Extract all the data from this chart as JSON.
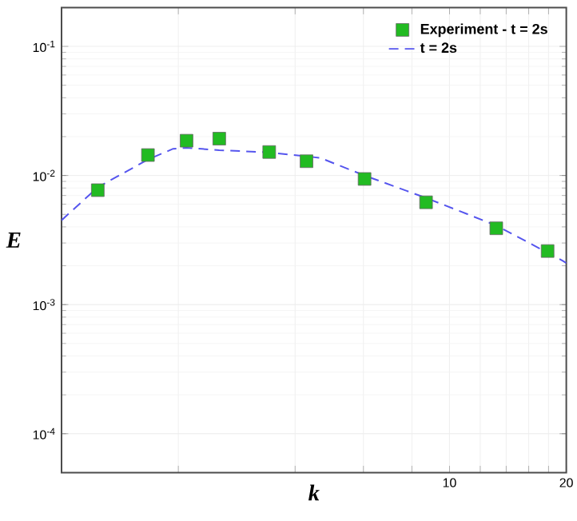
{
  "chart_data": {
    "type": "scatter",
    "xlabel": "k",
    "ylabel": "E",
    "log": "xy",
    "xlim": [
      1,
      20
    ],
    "ylim": [
      5e-05,
      0.2
    ],
    "xticks": [
      {
        "value": 2,
        "label": null
      },
      {
        "value": 4,
        "label": null
      },
      {
        "value": 6,
        "label": null
      },
      {
        "value": 8,
        "label": null
      },
      10,
      {
        "value": 12,
        "label": null
      },
      {
        "value": 14,
        "label": null
      },
      {
        "value": 16,
        "label": null
      },
      {
        "value": 18,
        "label": null
      },
      20
    ],
    "yticks": [
      {
        "value": 0.0001,
        "label": "10$^{-4}$"
      },
      {
        "value": 0.001,
        "label": "10$^{-3}$"
      },
      {
        "value": 0.01,
        "label": "10$^{-2}$"
      },
      {
        "value": 0.1,
        "label": "10$^{-1}$"
      }
    ],
    "grid": true,
    "legend": "top right",
    "series": [
      {
        "name": "Experiment - t = 2s",
        "marker": "square",
        "color": "#22bb22",
        "x": [
          1.24,
          1.67,
          2.1,
          2.55,
          3.43,
          4.28,
          6.04,
          8.7,
          13.2,
          17.9
        ],
        "values": [
          0.0077,
          0.0144,
          0.0186,
          0.0193,
          0.0152,
          0.0129,
          0.0094,
          0.0062,
          0.0039,
          0.0026
        ]
      },
      {
        "name": "t = 2s",
        "type": "line",
        "line_style": "dashed",
        "color": "#5555ee",
        "x": [
          1,
          1.24,
          1.67,
          1.94,
          2.1,
          2.55,
          3.43,
          4.64,
          6.04,
          8.7,
          13.2,
          19.5,
          20
        ],
        "values": [
          0.0045,
          0.0081,
          0.0133,
          0.0161,
          0.0164,
          0.0157,
          0.0151,
          0.0137,
          0.01,
          0.0067,
          0.0041,
          0.0022,
          0.0021
        ]
      }
    ]
  }
}
